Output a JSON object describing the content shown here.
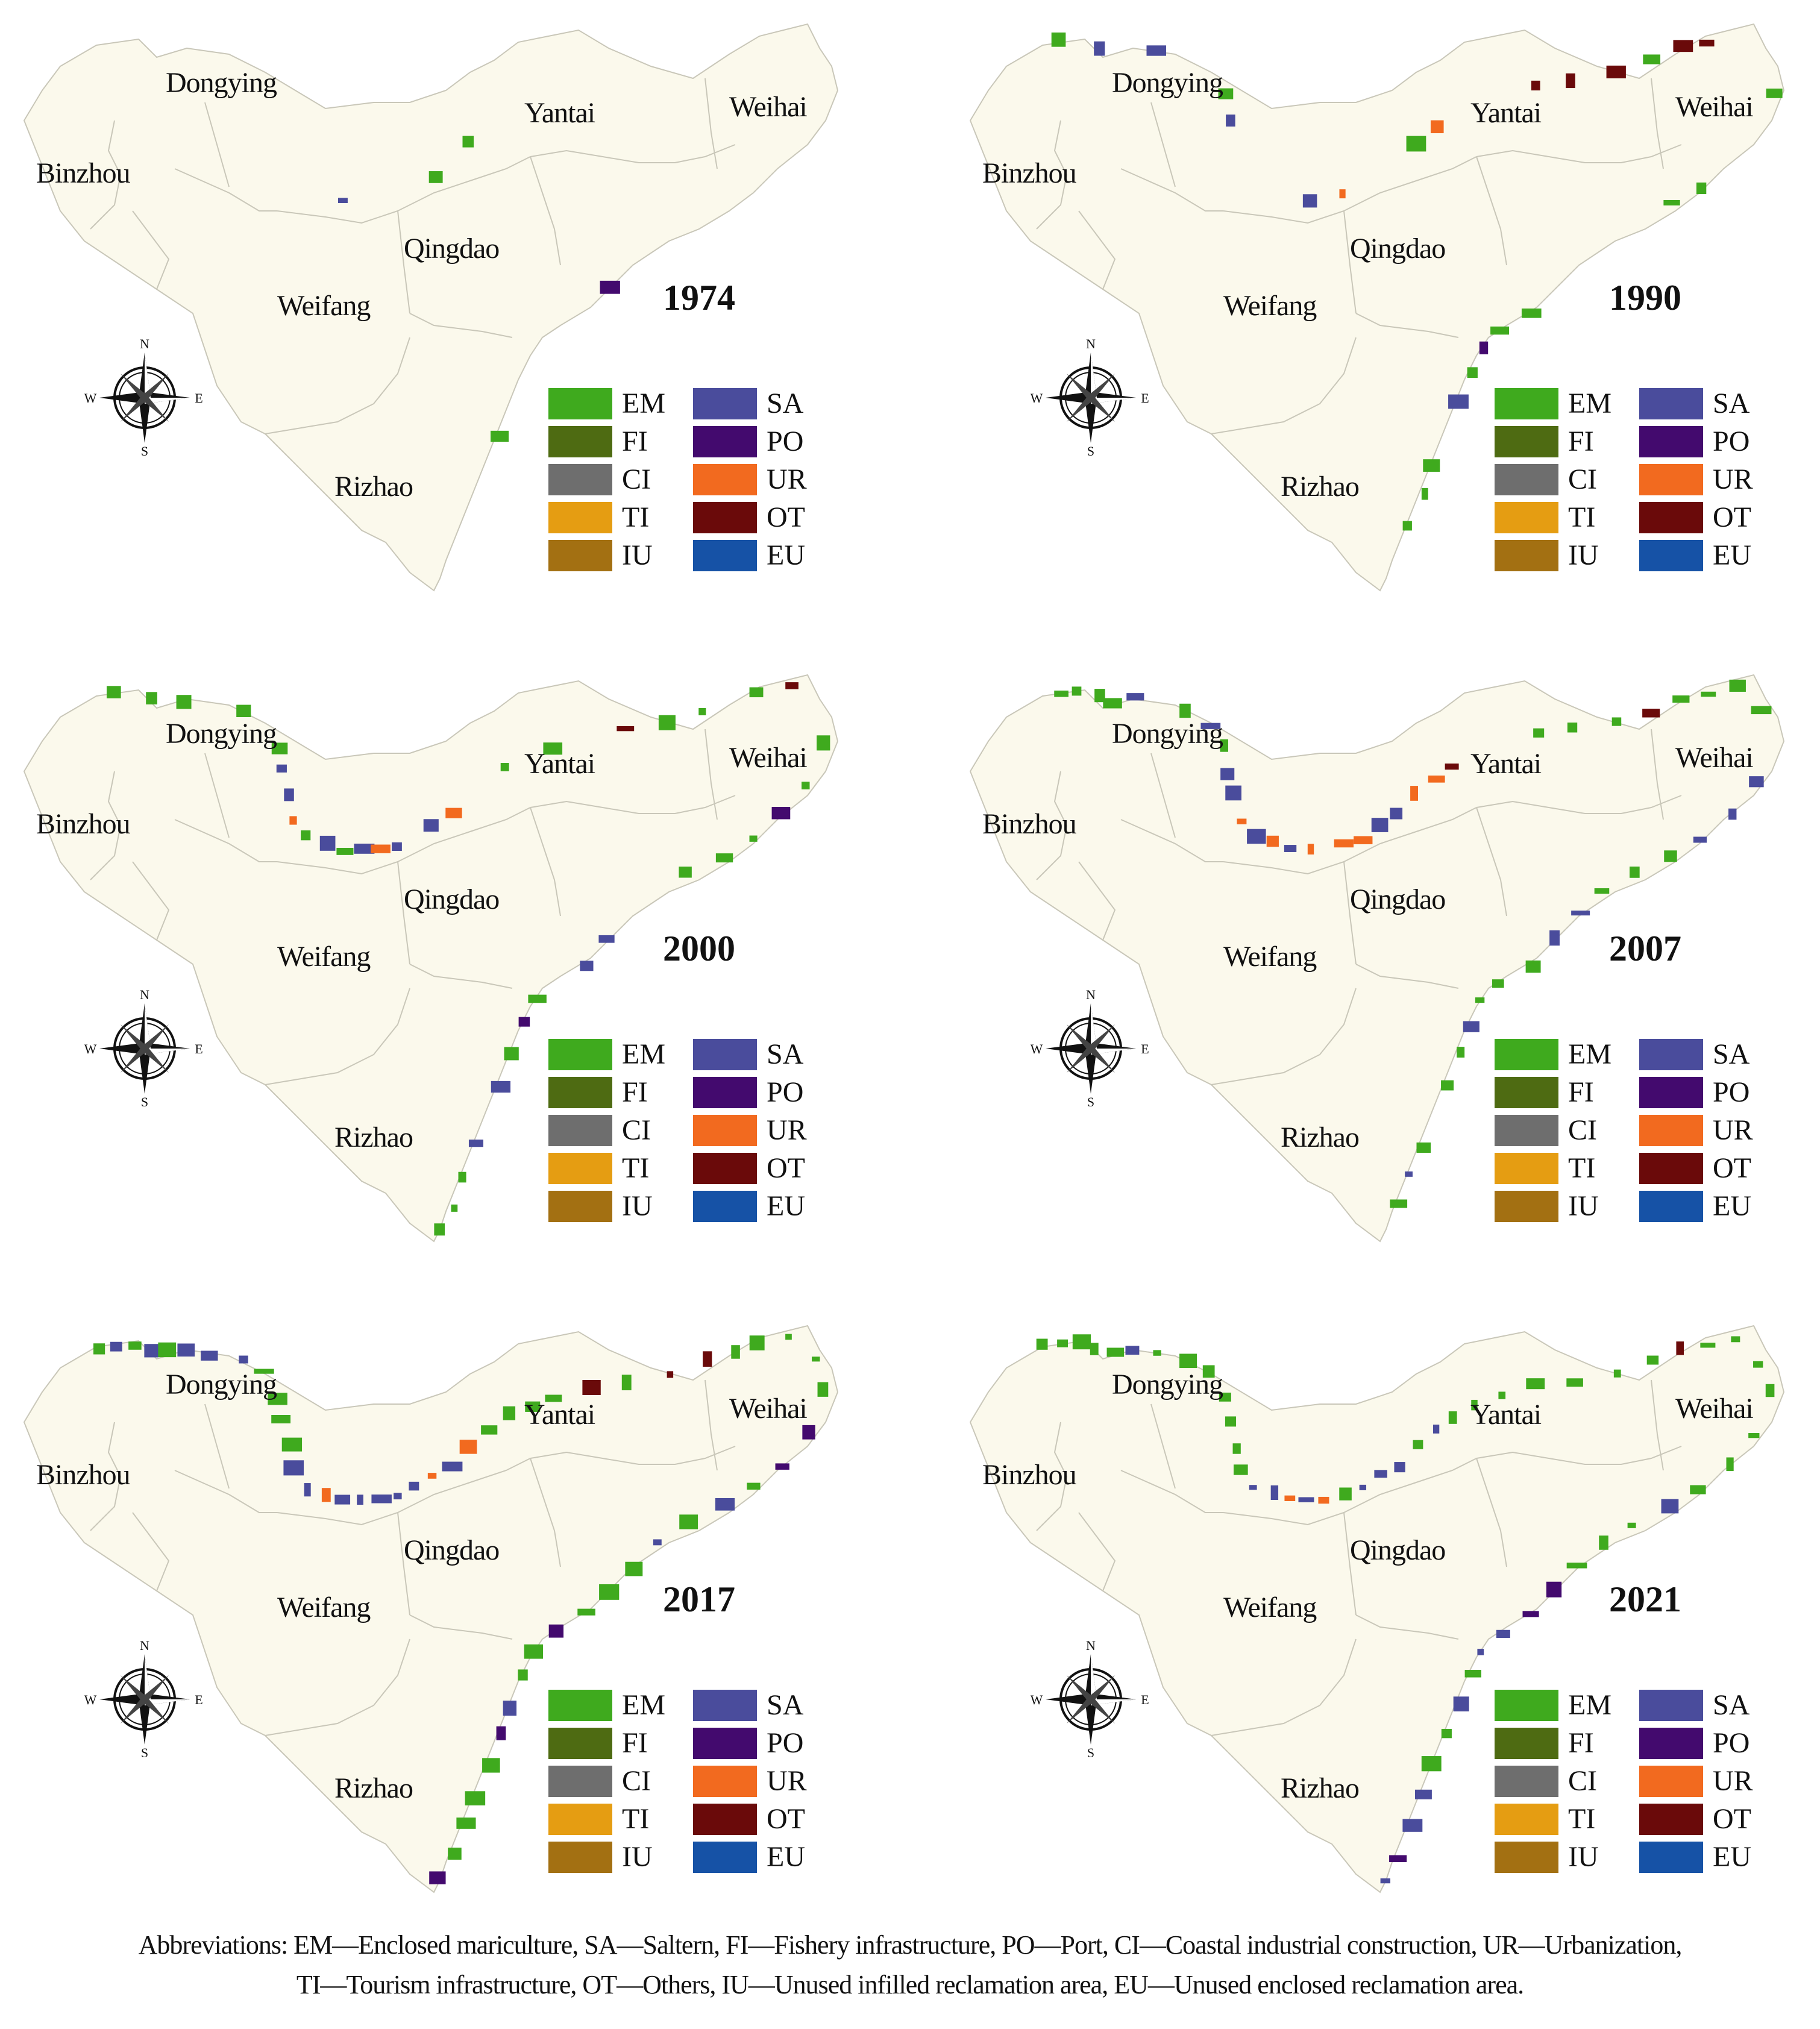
{
  "colors": {
    "land": "#fbf9ec",
    "border": "#c9c7b9",
    "text": "#111111"
  },
  "cities": {
    "dongying": "Dongying",
    "yantai": "Yantai",
    "weihai": "Weihai",
    "binzhou": "Binzhou",
    "qingdao": "Qingdao",
    "weifang": "Weifang",
    "rizhao": "Rizhao"
  },
  "compass_labels": {
    "n": "N",
    "s": "S",
    "e": "E",
    "w": "W"
  },
  "legend": [
    {
      "code": "EM",
      "color": "#3faa1e"
    },
    {
      "code": "SA",
      "color": "#4a4c9c"
    },
    {
      "code": "FI",
      "color": "#4e6b12"
    },
    {
      "code": "PO",
      "color": "#430a6e"
    },
    {
      "code": "CI",
      "color": "#6e6e6e"
    },
    {
      "code": "UR",
      "color": "#f26a1f"
    },
    {
      "code": "TI",
      "color": "#e59d12"
    },
    {
      "code": "OT",
      "color": "#6a0a0a"
    },
    {
      "code": "IU",
      "color": "#a37012"
    },
    {
      "code": "EU",
      "color": "#1652a6"
    }
  ],
  "panels": [
    {
      "year": "1974"
    },
    {
      "year": "1990"
    },
    {
      "year": "2000"
    },
    {
      "year": "2007"
    },
    {
      "year": "2017"
    },
    {
      "year": "2021"
    }
  ],
  "abbreviations": {
    "line1": "Abbreviations: EM—Enclosed mariculture, SA—Saltern, FI—Fishery infrastructure, PO—Port, CI—Coastal industrial construction, UR—Urbanization,",
    "line2": "TI—Tourism infrastructure, OT—Others, IU—Unused infilled reclamation area, EU—Unused enclosed reclamation area."
  }
}
